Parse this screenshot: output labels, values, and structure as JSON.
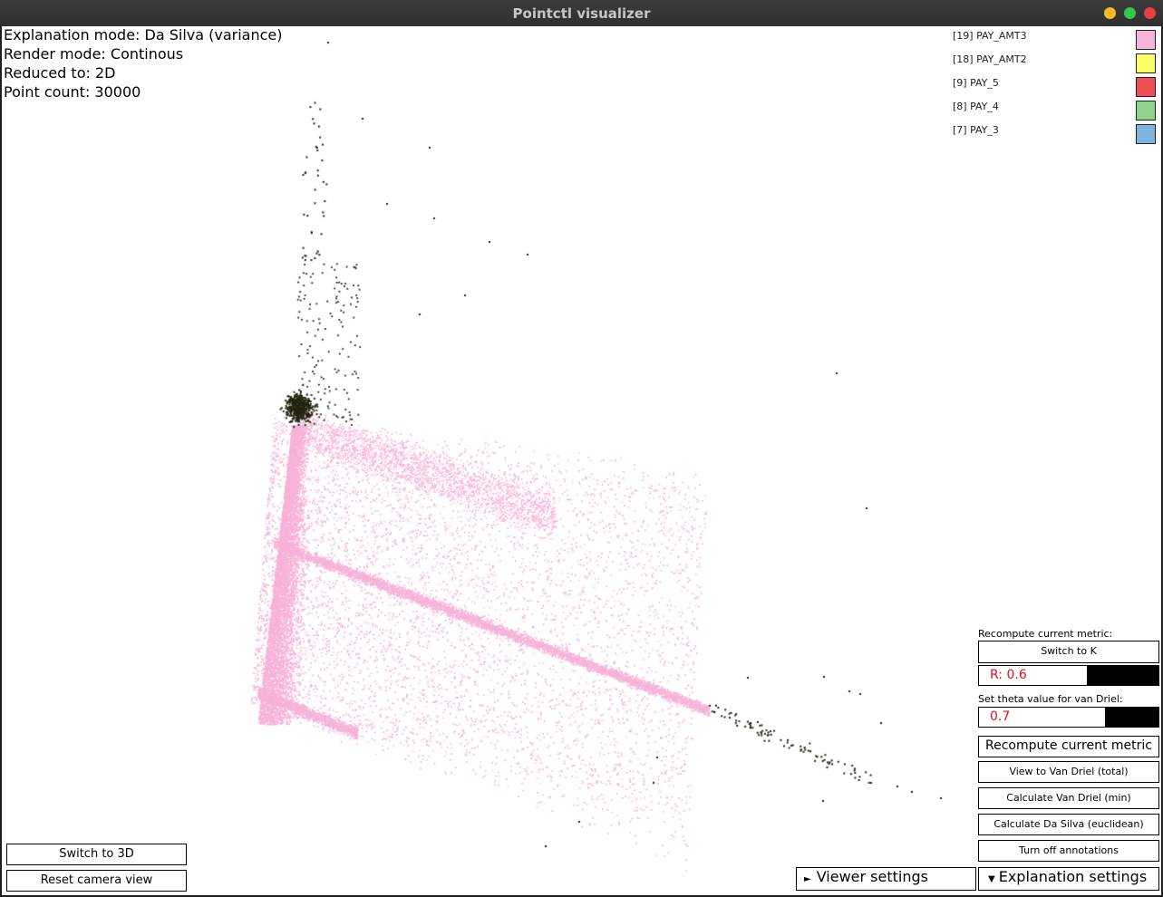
{
  "window": {
    "title": "Pointctl visualizer"
  },
  "info": {
    "explanation_mode": "Explanation mode: Da Silva (variance)",
    "render_mode": "Render mode: Continous",
    "reduced_to": "Reduced to: 2D",
    "point_count": "Point count: 30000"
  },
  "legend": [
    {
      "label": "[19] PAY_AMT3",
      "color": "#f9b3d9"
    },
    {
      "label": "[18] PAY_AMT2",
      "color": "#fdfd6a"
    },
    {
      "label": "[9] PAY_5",
      "color": "#ef4e52"
    },
    {
      "label": "[8] PAY_4",
      "color": "#8ed48a"
    },
    {
      "label": "[7] PAY_3",
      "color": "#7ab4df"
    }
  ],
  "panel": {
    "recompute_label": "Recompute current metric:",
    "switch_k": "Switch to K",
    "r_value": "R: 0.6",
    "r_fraction": 0.6,
    "theta_label": "Set theta value for van Driel:",
    "theta_value": "0.7",
    "theta_fraction": 0.7,
    "recompute_btn": "Recompute current metric",
    "view_van_driel": "View to Van Driel (total)",
    "calc_van_driel": "Calculate Van Driel (min)",
    "calc_da_silva": "Calculate Da Silva (euclidean)",
    "turn_off_annotations": "Turn off annotations"
  },
  "bottom": {
    "switch_3d": "Switch to 3D",
    "reset_camera": "Reset camera view",
    "viewer_settings": "Viewer settings",
    "explanation_settings": "Explanation settings"
  },
  "scatter": {
    "point_color": "#f7b2d8",
    "outlier_color": "#23230f"
  }
}
